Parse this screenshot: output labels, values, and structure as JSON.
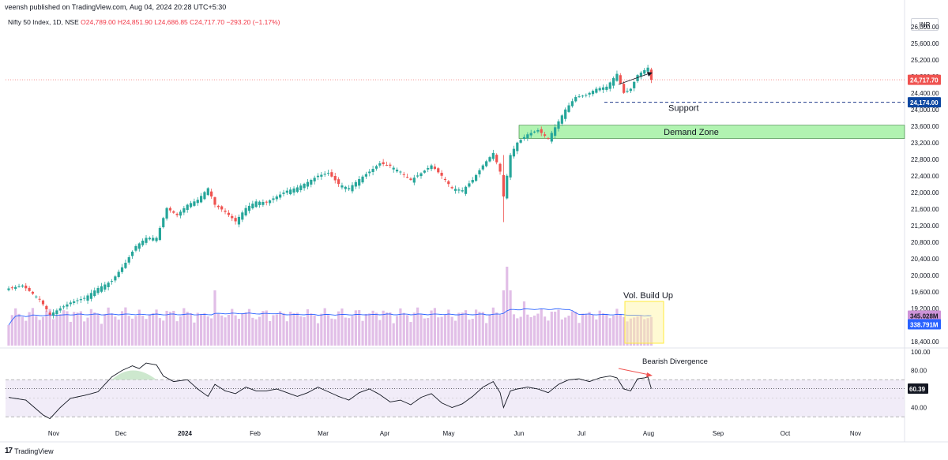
{
  "header": {
    "published_by": "veensh published on TradingView.com, Aug 04, 2024 20:28 UTC+5:30",
    "symbol": "Nifty 50 Index, 1D, NSE",
    "ohlc": "O24,789.00 H24,851.90 L24,686.85 C24,717.70 −293.20 (−1.17%)"
  },
  "currency_badge": "INR",
  "footer": {
    "logo": "17",
    "brand": "TradingView"
  },
  "colors": {
    "up": "#26a69a",
    "down": "#ef5350",
    "volume": "#e1bee7",
    "vol_ma": "#2962ff",
    "rsi_line": "#131722",
    "demand_fill": "#90ee90",
    "vol_box": "#ffeb3b"
  },
  "chart_data": {
    "type": "candlestick",
    "price_axis": {
      "ticks": [
        "26,000.00",
        "25,600.00",
        "25,200.00",
        "24,800.00",
        "24,400.00",
        "24,000.00",
        "23,600.00",
        "23,200.00",
        "22,800.00",
        "22,400.00",
        "22,000.00",
        "21,600.00",
        "21,200.00",
        "20,800.00",
        "20,400.00",
        "20,000.00",
        "19,600.00",
        "19,200.00",
        "18,800.00",
        "18,400.00"
      ],
      "range": [
        18300,
        26300
      ]
    },
    "x_axis": {
      "ticks": [
        "Nov",
        "Dec",
        "2024",
        "Feb",
        "Mar",
        "Apr",
        "May",
        "Jun",
        "Jul",
        "Aug",
        "Sep",
        "Oct",
        "Nov"
      ]
    },
    "labels": {
      "last_price": "24,717.70",
      "support_price": "24,174.00",
      "vol_label": "345.028M",
      "vol_ma_label": "338.791M",
      "support_text": "Support",
      "demand_text": "Demand Zone",
      "vol_buildup_text": "Vol. Build Up",
      "divergence_text": "Bearish Divergence"
    },
    "demand_zone": [
      23300,
      23620
    ],
    "support_level": 24174,
    "last_close": 24717.7,
    "close_anchors": [
      [
        0,
        19680
      ],
      [
        4,
        19750
      ],
      [
        9,
        19420
      ],
      [
        12,
        19050
      ],
      [
        15,
        19200
      ],
      [
        18,
        19340
      ],
      [
        22,
        19450
      ],
      [
        26,
        19690
      ],
      [
        30,
        19860
      ],
      [
        34,
        20300
      ],
      [
        37,
        20700
      ],
      [
        40,
        20900
      ],
      [
        43,
        20900
      ],
      [
        46,
        21620
      ],
      [
        49,
        21450
      ],
      [
        52,
        21700
      ],
      [
        55,
        21820
      ],
      [
        58,
        22100
      ],
      [
        60,
        21700
      ],
      [
        63,
        21530
      ],
      [
        66,
        21300
      ],
      [
        69,
        21620
      ],
      [
        72,
        21780
      ],
      [
        75,
        21760
      ],
      [
        78,
        21900
      ],
      [
        81,
        22040
      ],
      [
        84,
        22120
      ],
      [
        87,
        22250
      ],
      [
        90,
        22400
      ],
      [
        93,
        22470
      ],
      [
        96,
        22200
      ],
      [
        99,
        22100
      ],
      [
        102,
        22320
      ],
      [
        105,
        22500
      ],
      [
        108,
        22700
      ],
      [
        111,
        22640
      ],
      [
        114,
        22500
      ],
      [
        117,
        22300
      ],
      [
        120,
        22460
      ],
      [
        123,
        22650
      ],
      [
        126,
        22400
      ],
      [
        129,
        22100
      ],
      [
        132,
        22050
      ],
      [
        135,
        22300
      ],
      [
        138,
        22650
      ],
      [
        141,
        22950
      ],
      [
        143,
        22500
      ],
      [
        144,
        21900
      ],
      [
        146,
        22900
      ],
      [
        148,
        23200
      ],
      [
        151,
        23400
      ],
      [
        154,
        23500
      ],
      [
        157,
        23300
      ],
      [
        159,
        23570
      ],
      [
        162,
        24000
      ],
      [
        165,
        24300
      ],
      [
        168,
        24350
      ],
      [
        171,
        24500
      ],
      [
        174,
        24550
      ],
      [
        177,
        24860
      ],
      [
        179,
        24400
      ],
      [
        181,
        24500
      ],
      [
        183,
        24830
      ],
      [
        185,
        24950
      ],
      [
        186,
        25010
      ],
      [
        187,
        24717
      ]
    ],
    "volume_range_M": [
      0,
      1200
    ],
    "rsi_axis": {
      "ticks": [
        "100.00",
        "80.00",
        "40.00"
      ],
      "range": [
        20,
        100
      ],
      "value": 60.39,
      "value_label": "60.39"
    },
    "rsi_anchors": [
      [
        0,
        51
      ],
      [
        5,
        48
      ],
      [
        10,
        32
      ],
      [
        12,
        28
      ],
      [
        15,
        40
      ],
      [
        18,
        50
      ],
      [
        22,
        53
      ],
      [
        26,
        57
      ],
      [
        30,
        73
      ],
      [
        33,
        80
      ],
      [
        36,
        85
      ],
      [
        38,
        82
      ],
      [
        40,
        88
      ],
      [
        43,
        86
      ],
      [
        45,
        74
      ],
      [
        48,
        68
      ],
      [
        52,
        70
      ],
      [
        55,
        60
      ],
      [
        58,
        52
      ],
      [
        60,
        65
      ],
      [
        63,
        58
      ],
      [
        66,
        55
      ],
      [
        69,
        62
      ],
      [
        72,
        58
      ],
      [
        75,
        58
      ],
      [
        78,
        60
      ],
      [
        81,
        56
      ],
      [
        84,
        52
      ],
      [
        87,
        56
      ],
      [
        90,
        62
      ],
      [
        93,
        57
      ],
      [
        96,
        52
      ],
      [
        99,
        48
      ],
      [
        102,
        56
      ],
      [
        105,
        60
      ],
      [
        108,
        54
      ],
      [
        111,
        46
      ],
      [
        114,
        48
      ],
      [
        117,
        43
      ],
      [
        120,
        51
      ],
      [
        123,
        55
      ],
      [
        126,
        45
      ],
      [
        129,
        40
      ],
      [
        132,
        44
      ],
      [
        135,
        52
      ],
      [
        138,
        62
      ],
      [
        141,
        68
      ],
      [
        143,
        56
      ],
      [
        144,
        40
      ],
      [
        146,
        58
      ],
      [
        148,
        60
      ],
      [
        151,
        62
      ],
      [
        154,
        60
      ],
      [
        157,
        56
      ],
      [
        160,
        65
      ],
      [
        163,
        70
      ],
      [
        166,
        71
      ],
      [
        169,
        68
      ],
      [
        172,
        72
      ],
      [
        175,
        74
      ],
      [
        177,
        72
      ],
      [
        179,
        60
      ],
      [
        181,
        58
      ],
      [
        183,
        71
      ],
      [
        185,
        72
      ],
      [
        186,
        73
      ],
      [
        187,
        60.39
      ]
    ]
  }
}
